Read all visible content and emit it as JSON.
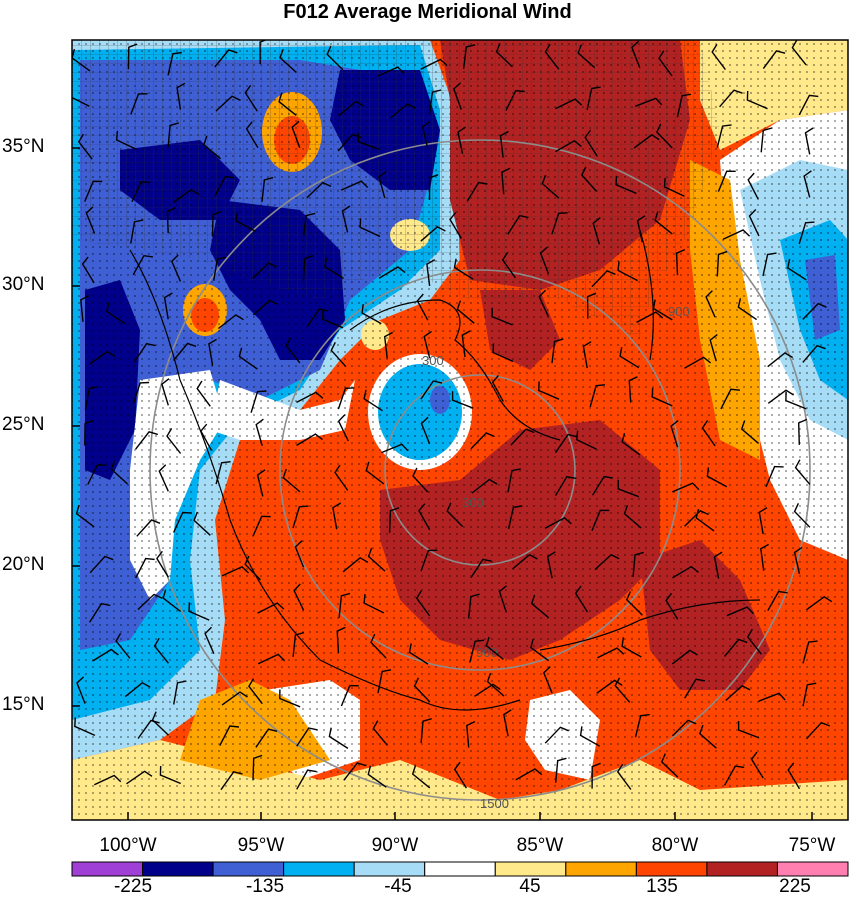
{
  "title": "F012 Average Meridional Wind",
  "lat_labels": [
    "35°N",
    "30°N",
    "25°N",
    "20°N",
    "15°N"
  ],
  "lon_labels": [
    "100°W",
    "95°W",
    "90°W",
    "85°W",
    "80°W",
    "75°W"
  ],
  "range_ring_labels": [
    "300",
    "900",
    "1500"
  ],
  "colorbar": {
    "colors": [
      "#9f3fd6",
      "#00008b",
      "#3f5fd4",
      "#00b0f0",
      "#a6dcf5",
      "#ffffff",
      "#ffe98a",
      "#ffa500",
      "#ff4500",
      "#b22222",
      "#ff7fb0"
    ],
    "labels": [
      "-225",
      "-135",
      "-45",
      "45",
      "135",
      "225"
    ]
  },
  "colors": {
    "strong_south": "#00008b",
    "south": "#3f5fd4",
    "light_south": "#00b0f0",
    "pale_south": "#a6dcf5",
    "pale_north": "#ffe98a",
    "north": "#ffa500",
    "strong_north": "#ff4500",
    "very_strong_north": "#b22222"
  }
}
